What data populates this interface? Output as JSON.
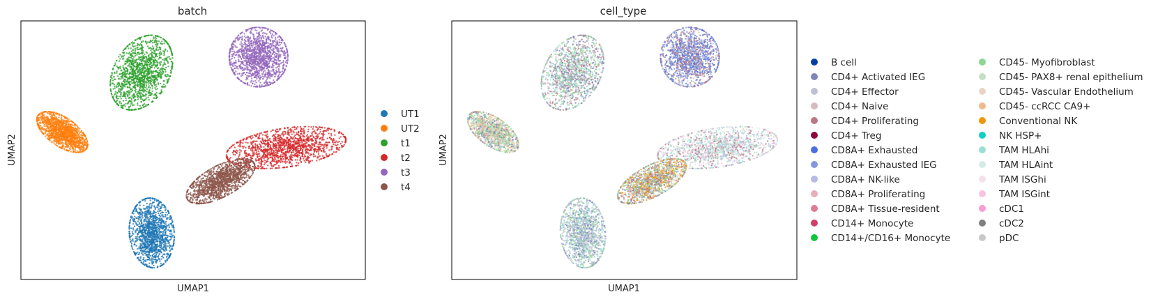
{
  "chart_data": [
    {
      "type": "scatter",
      "title": "batch",
      "xlabel": "UMAP1",
      "ylabel": "UMAP2",
      "xticks": [],
      "yticks": [],
      "legend_position": "right",
      "series": [
        {
          "name": "UT1",
          "color": "#1f77b4"
        },
        {
          "name": "UT2",
          "color": "#ff7f0e"
        },
        {
          "name": "t1",
          "color": "#2ca02c"
        },
        {
          "name": "t2",
          "color": "#d62728"
        },
        {
          "name": "t3",
          "color": "#9467bd"
        },
        {
          "name": "t4",
          "color": "#8c564b"
        }
      ],
      "clusters": [
        {
          "series": "UT1",
          "cx": 0.38,
          "cy": 0.18,
          "rx": 0.065,
          "ry": 0.135,
          "angle": -5
        },
        {
          "series": "UT2",
          "cx": 0.12,
          "cy": 0.57,
          "rx": 0.085,
          "ry": 0.055,
          "angle": 35
        },
        {
          "series": "t1",
          "cx": 0.35,
          "cy": 0.8,
          "rx": 0.08,
          "ry": 0.155,
          "angle": 30
        },
        {
          "series": "t2",
          "cx": 0.77,
          "cy": 0.51,
          "rx": 0.175,
          "ry": 0.075,
          "angle": -8
        },
        {
          "series": "t3",
          "cx": 0.69,
          "cy": 0.86,
          "rx": 0.085,
          "ry": 0.115,
          "angle": 0
        },
        {
          "series": "t4",
          "cx": 0.58,
          "cy": 0.38,
          "rx": 0.11,
          "ry": 0.06,
          "angle": -28
        }
      ]
    },
    {
      "type": "scatter",
      "title": "cell_type",
      "xlabel": "UMAP1",
      "ylabel": "UMAP2",
      "xticks": [],
      "yticks": [],
      "legend_position": "right",
      "series": [
        {
          "name": "B cell",
          "color": "#023fa5"
        },
        {
          "name": "CD4+ Activated IEG",
          "color": "#7d87b9"
        },
        {
          "name": "CD4+ Effector",
          "color": "#bec1d4"
        },
        {
          "name": "CD4+ Naive",
          "color": "#d6bcc0"
        },
        {
          "name": "CD4+ Proliferating",
          "color": "#bb7784"
        },
        {
          "name": "CD4+ Treg",
          "color": "#8e063b"
        },
        {
          "name": "CD8A+ Exhausted",
          "color": "#4a6fe3"
        },
        {
          "name": "CD8A+ Exhausted IEG",
          "color": "#8595e1"
        },
        {
          "name": "CD8A+ NK-like",
          "color": "#b5bbe3"
        },
        {
          "name": "CD8A+ Proliferating",
          "color": "#e6afb9"
        },
        {
          "name": "CD8A+ Tissue-resident",
          "color": "#e07b91"
        },
        {
          "name": "CD14+ Monocyte",
          "color": "#d33f6a"
        },
        {
          "name": "CD14+/CD16+ Monocyte",
          "color": "#11c638"
        },
        {
          "name": "CD45- Myofibroblast",
          "color": "#8dd593"
        },
        {
          "name": "CD45- PAX8+ renal epithelium",
          "color": "#c6dec7"
        },
        {
          "name": "CD45- Vascular Endothelium",
          "color": "#ead3c6"
        },
        {
          "name": "CD45- ccRCC CA9+",
          "color": "#f0b98d"
        },
        {
          "name": "Conventional NK",
          "color": "#ef9708"
        },
        {
          "name": "NK HSP+",
          "color": "#0fcfc0"
        },
        {
          "name": "TAM HLAhi",
          "color": "#9cded6"
        },
        {
          "name": "TAM HLAint",
          "color": "#d5eae7"
        },
        {
          "name": "TAM ISGhi",
          "color": "#f3e1eb"
        },
        {
          "name": "TAM ISGint",
          "color": "#f6c4e1"
        },
        {
          "name": "cDC1",
          "color": "#f79cd4"
        },
        {
          "name": "cDC2",
          "color": "#7f7f7f"
        },
        {
          "name": "pDC",
          "color": "#c7c7c7"
        }
      ],
      "clusters": [
        {
          "cx": 0.38,
          "cy": 0.18,
          "rx": 0.065,
          "ry": 0.135,
          "angle": -5,
          "palette": [
            "#bec1d4",
            "#9cded6",
            "#b5bbe3",
            "#c7c7c7",
            "#7d87b9",
            "#8dd593"
          ]
        },
        {
          "cx": 0.12,
          "cy": 0.57,
          "rx": 0.085,
          "ry": 0.055,
          "angle": 35,
          "palette": [
            "#f0b98d",
            "#ead3c6",
            "#8dd593",
            "#7d87b9",
            "#c6dec7"
          ]
        },
        {
          "cx": 0.35,
          "cy": 0.8,
          "rx": 0.08,
          "ry": 0.155,
          "angle": 30,
          "palette": [
            "#bec1d4",
            "#8dd593",
            "#7d87b9",
            "#bb7784",
            "#9cded6",
            "#c7c7c7"
          ]
        },
        {
          "cx": 0.77,
          "cy": 0.51,
          "rx": 0.175,
          "ry": 0.075,
          "angle": -8,
          "palette": [
            "#d5eae7",
            "#9cded6",
            "#c6dec7",
            "#b5bbe3",
            "#bb7784",
            "#f6c4e1"
          ]
        },
        {
          "cx": 0.69,
          "cy": 0.86,
          "rx": 0.085,
          "ry": 0.115,
          "angle": 0,
          "palette": [
            "#4a6fe3",
            "#8595e1",
            "#7d87b9",
            "#bb7784",
            "#bec1d4"
          ]
        },
        {
          "cx": 0.58,
          "cy": 0.38,
          "rx": 0.11,
          "ry": 0.06,
          "angle": -28,
          "palette": [
            "#f0b98d",
            "#8dd593",
            "#ef9708",
            "#bb7784",
            "#7d87b9",
            "#c6dec7"
          ]
        }
      ]
    }
  ]
}
